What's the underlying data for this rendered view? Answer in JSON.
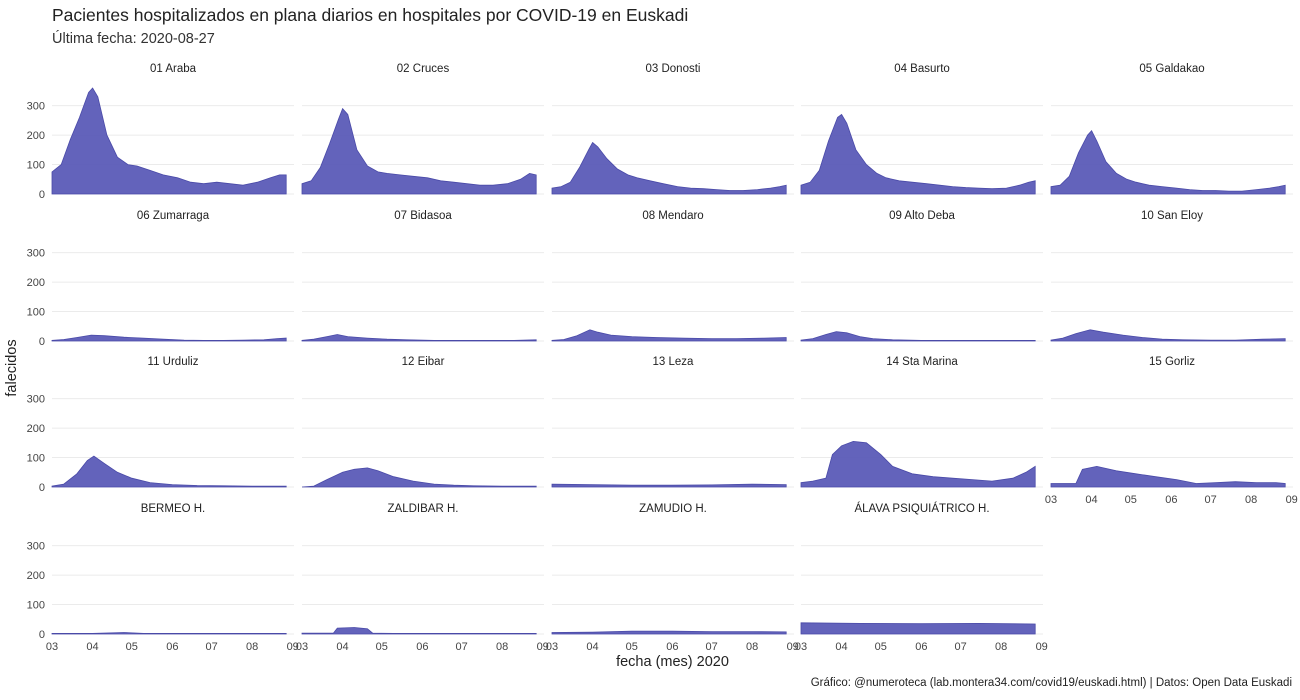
{
  "title": "Pacientes hospitalizados en plana diarios en hospitales por COVID-19 en Euskadi",
  "subtitle": "Última fecha: 2020-08-27",
  "caption": "Gráfico: @numeroteca (lab.montera34.com/covid19/euskadi.html) | Datos: Open Data Euskadi",
  "colors": {
    "fill": "#5b5bb7",
    "stroke": "#4a4aa8",
    "grid": "#ebebeb",
    "text": "#444444"
  },
  "chart_data": {
    "type": "area",
    "title": "Pacientes hospitalizados en plana diarios en hospitales por COVID-19 en Euskadi",
    "subtitle": "Última fecha: 2020-08-27",
    "xlabel": "fecha (mes) 2020",
    "ylabel": "falecidos",
    "ylim": [
      0,
      360
    ],
    "y_ticks": [
      0,
      100,
      200,
      300
    ],
    "x_ticks": [
      "03",
      "04",
      "05",
      "06",
      "07",
      "08",
      "09"
    ],
    "x_range": [
      "2020-03-01",
      "2020-09-02"
    ],
    "grid": true,
    "legend": "none",
    "series": [
      {
        "name": "01 Araba",
        "x": [
          "2020-03-01",
          "2020-03-08",
          "2020-03-15",
          "2020-03-22",
          "2020-03-29",
          "2020-04-01",
          "2020-04-05",
          "2020-04-12",
          "2020-04-20",
          "2020-04-28",
          "2020-05-05",
          "2020-05-15",
          "2020-05-25",
          "2020-06-05",
          "2020-06-15",
          "2020-06-25",
          "2020-07-05",
          "2020-07-15",
          "2020-07-25",
          "2020-08-05",
          "2020-08-15",
          "2020-08-22",
          "2020-08-27"
        ],
        "values": [
          75,
          100,
          185,
          260,
          345,
          360,
          330,
          200,
          125,
          100,
          95,
          80,
          65,
          55,
          40,
          35,
          40,
          35,
          30,
          40,
          55,
          65,
          65
        ]
      },
      {
        "name": "02 Cruces",
        "x": [
          "2020-03-01",
          "2020-03-08",
          "2020-03-15",
          "2020-03-22",
          "2020-03-29",
          "2020-04-01",
          "2020-04-05",
          "2020-04-12",
          "2020-04-20",
          "2020-04-28",
          "2020-05-05",
          "2020-05-15",
          "2020-05-25",
          "2020-06-05",
          "2020-06-15",
          "2020-06-25",
          "2020-07-05",
          "2020-07-15",
          "2020-07-25",
          "2020-08-05",
          "2020-08-15",
          "2020-08-22",
          "2020-08-27"
        ],
        "values": [
          35,
          45,
          90,
          170,
          255,
          290,
          270,
          150,
          95,
          75,
          70,
          65,
          60,
          55,
          45,
          40,
          35,
          30,
          30,
          35,
          50,
          70,
          65
        ]
      },
      {
        "name": "03 Donosti",
        "x": [
          "2020-03-01",
          "2020-03-08",
          "2020-03-15",
          "2020-03-22",
          "2020-03-29",
          "2020-04-01",
          "2020-04-05",
          "2020-04-12",
          "2020-04-20",
          "2020-04-28",
          "2020-05-05",
          "2020-05-15",
          "2020-05-25",
          "2020-06-05",
          "2020-06-15",
          "2020-06-25",
          "2020-07-05",
          "2020-07-15",
          "2020-07-25",
          "2020-08-05",
          "2020-08-15",
          "2020-08-22",
          "2020-08-27"
        ],
        "values": [
          20,
          25,
          40,
          90,
          150,
          175,
          160,
          120,
          85,
          65,
          55,
          45,
          35,
          25,
          20,
          18,
          15,
          12,
          12,
          15,
          20,
          25,
          30
        ]
      },
      {
        "name": "04 Basurto",
        "x": [
          "2020-03-01",
          "2020-03-08",
          "2020-03-15",
          "2020-03-22",
          "2020-03-29",
          "2020-04-01",
          "2020-04-05",
          "2020-04-12",
          "2020-04-20",
          "2020-04-28",
          "2020-05-05",
          "2020-05-15",
          "2020-05-25",
          "2020-06-05",
          "2020-06-15",
          "2020-06-25",
          "2020-07-05",
          "2020-07-15",
          "2020-07-25",
          "2020-08-05",
          "2020-08-15",
          "2020-08-22",
          "2020-08-27"
        ],
        "values": [
          30,
          40,
          80,
          180,
          260,
          270,
          240,
          150,
          100,
          70,
          55,
          45,
          40,
          35,
          30,
          25,
          22,
          20,
          18,
          20,
          30,
          40,
          45
        ]
      },
      {
        "name": "05 Galdakao",
        "x": [
          "2020-03-01",
          "2020-03-08",
          "2020-03-15",
          "2020-03-22",
          "2020-03-29",
          "2020-04-01",
          "2020-04-05",
          "2020-04-12",
          "2020-04-20",
          "2020-04-28",
          "2020-05-05",
          "2020-05-15",
          "2020-05-25",
          "2020-06-05",
          "2020-06-15",
          "2020-06-25",
          "2020-07-05",
          "2020-07-15",
          "2020-07-25",
          "2020-08-05",
          "2020-08-15",
          "2020-08-22",
          "2020-08-27"
        ],
        "values": [
          25,
          30,
          60,
          140,
          200,
          215,
          180,
          110,
          70,
          50,
          40,
          30,
          25,
          20,
          15,
          12,
          12,
          10,
          10,
          15,
          20,
          25,
          30
        ]
      },
      {
        "name": "06 Zumarraga",
        "x": [
          "2020-03-01",
          "2020-03-10",
          "2020-03-20",
          "2020-03-31",
          "2020-04-10",
          "2020-04-25",
          "2020-05-10",
          "2020-05-25",
          "2020-06-10",
          "2020-06-25",
          "2020-07-10",
          "2020-07-25",
          "2020-08-10",
          "2020-08-20",
          "2020-08-27"
        ],
        "values": [
          2,
          5,
          12,
          20,
          18,
          13,
          10,
          6,
          3,
          2,
          2,
          3,
          4,
          8,
          10
        ]
      },
      {
        "name": "07 Bidasoa",
        "x": [
          "2020-03-01",
          "2020-03-10",
          "2020-03-20",
          "2020-03-28",
          "2020-04-05",
          "2020-04-20",
          "2020-05-05",
          "2020-05-20",
          "2020-06-10",
          "2020-07-01",
          "2020-07-20",
          "2020-08-10",
          "2020-08-27"
        ],
        "values": [
          2,
          6,
          15,
          22,
          15,
          10,
          6,
          4,
          2,
          2,
          2,
          2,
          4
        ]
      },
      {
        "name": "08 Mendaro",
        "x": [
          "2020-03-01",
          "2020-03-10",
          "2020-03-20",
          "2020-03-30",
          "2020-04-05",
          "2020-04-15",
          "2020-05-01",
          "2020-05-20",
          "2020-06-10",
          "2020-07-01",
          "2020-07-20",
          "2020-08-10",
          "2020-08-27"
        ],
        "values": [
          2,
          5,
          18,
          38,
          30,
          20,
          15,
          12,
          10,
          8,
          8,
          10,
          12
        ]
      },
      {
        "name": "09 Alto Deba",
        "x": [
          "2020-03-01",
          "2020-03-10",
          "2020-03-20",
          "2020-03-28",
          "2020-04-05",
          "2020-04-15",
          "2020-04-25",
          "2020-05-10",
          "2020-06-01",
          "2020-07-01",
          "2020-08-01",
          "2020-08-27"
        ],
        "values": [
          3,
          8,
          22,
          32,
          28,
          15,
          8,
          4,
          2,
          2,
          2,
          2
        ]
      },
      {
        "name": "10 San Eloy",
        "x": [
          "2020-03-01",
          "2020-03-10",
          "2020-03-20",
          "2020-03-31",
          "2020-04-10",
          "2020-04-25",
          "2020-05-10",
          "2020-05-25",
          "2020-06-10",
          "2020-07-01",
          "2020-07-20",
          "2020-08-10",
          "2020-08-27"
        ],
        "values": [
          3,
          10,
          25,
          38,
          30,
          20,
          12,
          6,
          4,
          3,
          3,
          6,
          8
        ]
      },
      {
        "name": "11 Urduliz",
        "x": [
          "2020-03-01",
          "2020-03-10",
          "2020-03-20",
          "2020-03-28",
          "2020-04-02",
          "2020-04-10",
          "2020-04-20",
          "2020-05-01",
          "2020-05-15",
          "2020-06-01",
          "2020-06-20",
          "2020-07-10",
          "2020-08-01",
          "2020-08-27"
        ],
        "values": [
          3,
          10,
          45,
          90,
          105,
          80,
          50,
          30,
          15,
          8,
          5,
          4,
          3,
          3
        ]
      },
      {
        "name": "12 Eibar",
        "x": [
          "2020-03-01",
          "2020-03-10",
          "2020-03-20",
          "2020-04-01",
          "2020-04-10",
          "2020-04-20",
          "2020-04-28",
          "2020-05-10",
          "2020-05-25",
          "2020-06-10",
          "2020-06-25",
          "2020-07-10",
          "2020-08-01",
          "2020-08-27"
        ],
        "values": [
          0,
          3,
          25,
          50,
          60,
          65,
          55,
          35,
          20,
          10,
          6,
          4,
          3,
          3
        ]
      },
      {
        "name": "13 Leza",
        "x": [
          "2020-03-01",
          "2020-04-01",
          "2020-05-01",
          "2020-06-01",
          "2020-07-01",
          "2020-08-01",
          "2020-08-27"
        ],
        "values": [
          10,
          8,
          6,
          6,
          7,
          10,
          8
        ]
      },
      {
        "name": "14 Sta Marina",
        "x": [
          "2020-03-01",
          "2020-03-10",
          "2020-03-20",
          "2020-03-25",
          "2020-04-01",
          "2020-04-10",
          "2020-04-20",
          "2020-05-01",
          "2020-05-10",
          "2020-05-25",
          "2020-06-10",
          "2020-06-25",
          "2020-07-10",
          "2020-07-25",
          "2020-08-10",
          "2020-08-20",
          "2020-08-27"
        ],
        "values": [
          15,
          20,
          30,
          110,
          140,
          155,
          150,
          110,
          70,
          45,
          35,
          30,
          25,
          20,
          30,
          50,
          70
        ]
      },
      {
        "name": "15 Gorliz",
        "x": [
          "2020-03-01",
          "2020-03-10",
          "2020-03-20",
          "2020-03-25",
          "2020-04-05",
          "2020-04-20",
          "2020-05-05",
          "2020-05-20",
          "2020-06-05",
          "2020-06-20",
          "2020-07-05",
          "2020-07-20",
          "2020-08-05",
          "2020-08-20",
          "2020-08-27"
        ],
        "values": [
          12,
          12,
          12,
          60,
          70,
          55,
          45,
          35,
          25,
          12,
          15,
          18,
          15,
          15,
          12
        ]
      },
      {
        "name": "BERMEO H.",
        "x": [
          "2020-03-01",
          "2020-04-01",
          "2020-04-25",
          "2020-05-10",
          "2020-06-10",
          "2020-07-10",
          "2020-08-10",
          "2020-08-27"
        ],
        "values": [
          2,
          2,
          5,
          2,
          2,
          2,
          2,
          2
        ]
      },
      {
        "name": "ZALDIBAR H.",
        "x": [
          "2020-03-01",
          "2020-03-25",
          "2020-03-28",
          "2020-04-10",
          "2020-04-20",
          "2020-04-24",
          "2020-05-10",
          "2020-06-10",
          "2020-07-10",
          "2020-08-10",
          "2020-08-27"
        ],
        "values": [
          3,
          3,
          20,
          22,
          18,
          3,
          2,
          2,
          2,
          2,
          2
        ]
      },
      {
        "name": "ZAMUDIO H.",
        "x": [
          "2020-03-01",
          "2020-04-01",
          "2020-05-01",
          "2020-06-01",
          "2020-07-01",
          "2020-08-01",
          "2020-08-27"
        ],
        "values": [
          5,
          6,
          10,
          10,
          8,
          8,
          7
        ]
      },
      {
        "name": "ÁLAVA PSIQUIÁTRICO H.",
        "x": [
          "2020-03-01",
          "2020-04-15",
          "2020-06-01",
          "2020-07-15",
          "2020-08-27"
        ],
        "values": [
          38,
          36,
          35,
          36,
          34
        ]
      }
    ]
  }
}
